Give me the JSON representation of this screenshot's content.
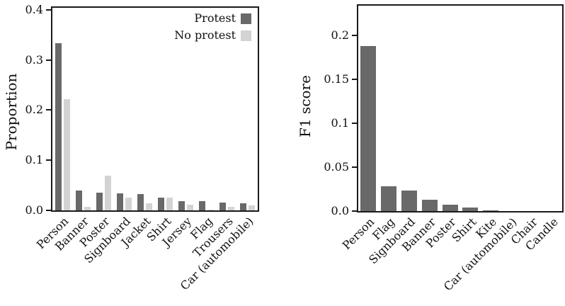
{
  "figure": {
    "background": "#ffffff",
    "text_color": "#111111",
    "spine_color": "#1a1a1a",
    "bar_dark": "#696969",
    "bar_light": "#d3d3d3"
  },
  "chart_data": [
    {
      "type": "bar",
      "title": "",
      "ylabel": "Proportion",
      "xlabel": "",
      "categories": [
        "Person",
        "Banner",
        "Poster",
        "Signboard",
        "Jacket",
        "Shirt",
        "Jersey",
        "Flag",
        "Trousers",
        "Car (automobile)"
      ],
      "series": [
        {
          "name": "Protest",
          "color": "#696969",
          "values": [
            0.334,
            0.04,
            0.036,
            0.034,
            0.032,
            0.025,
            0.019,
            0.018,
            0.016,
            0.014
          ]
        },
        {
          "name": "No protest",
          "color": "#d3d3d3",
          "values": [
            0.222,
            0.007,
            0.069,
            0.025,
            0.014,
            0.026,
            0.012,
            0.002,
            0.007,
            0.01
          ]
        }
      ],
      "ylim": [
        0,
        0.404
      ],
      "yticks": [
        {
          "value": 0.0,
          "label": "0.0"
        },
        {
          "value": 0.1,
          "label": "0.1"
        },
        {
          "value": 0.2,
          "label": "0.2"
        },
        {
          "value": 0.3,
          "label": "0.3"
        },
        {
          "value": 0.4,
          "label": "0.4"
        }
      ],
      "xtick_rotation": 45,
      "grid": false,
      "legend": {
        "position": "upper-right",
        "marker_side": "right",
        "frame": false
      }
    },
    {
      "type": "bar",
      "title": "",
      "ylabel": "F1 score",
      "xlabel": "",
      "categories": [
        "Person",
        "Flag",
        "Signboard",
        "Banner",
        "Poster",
        "Shirt",
        "Kite",
        "Car (automobile)",
        "Chair",
        "Candle"
      ],
      "series": [
        {
          "name": "F1 score",
          "color": "#696969",
          "values": [
            0.188,
            0.028,
            0.0235,
            0.013,
            0.0075,
            0.004,
            0.001,
            0.0004,
            0.0003,
            0.0002
          ]
        }
      ],
      "ylim": [
        0,
        0.2335
      ],
      "yticks": [
        {
          "value": 0.0,
          "label": "0.0"
        },
        {
          "value": 0.05,
          "label": "0.05"
        },
        {
          "value": 0.1,
          "label": "0.1"
        },
        {
          "value": 0.15,
          "label": "0.15"
        },
        {
          "value": 0.2,
          "label": "0.2"
        }
      ],
      "xtick_rotation": 45,
      "grid": false,
      "legend": null
    }
  ]
}
